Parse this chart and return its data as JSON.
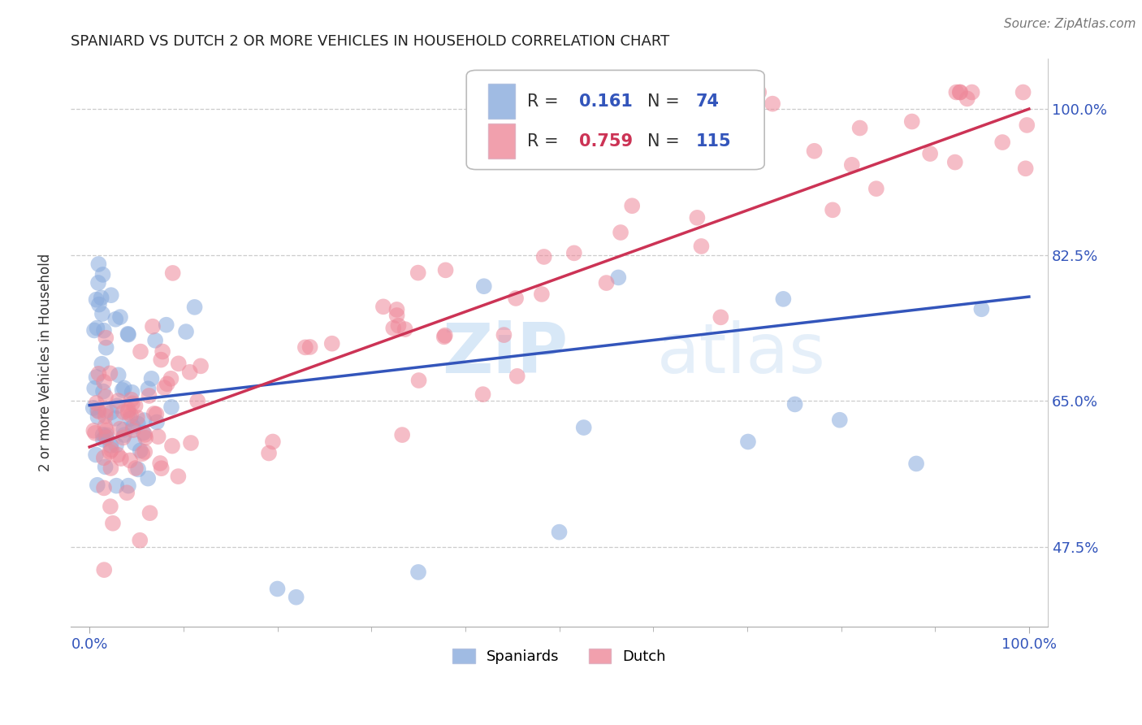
{
  "title": "SPANIARD VS DUTCH 2 OR MORE VEHICLES IN HOUSEHOLD CORRELATION CHART",
  "source": "Source: ZipAtlas.com",
  "ylabel": "2 or more Vehicles in Household",
  "spaniard_color": "#88AADD",
  "dutch_color": "#EE8899",
  "spaniard_line_color": "#3355BB",
  "dutch_line_color": "#CC3355",
  "R_spaniard": 0.161,
  "N_spaniard": 74,
  "R_dutch": 0.759,
  "N_dutch": 115,
  "legend_labels": [
    "Spaniards",
    "Dutch"
  ],
  "ytick_vals": [
    0.475,
    0.65,
    0.825,
    1.0
  ],
  "ytick_labels": [
    "47.5%",
    "65.0%",
    "82.5%",
    "100.0%"
  ],
  "xtick_vals": [
    0.0,
    1.0
  ],
  "xtick_labels": [
    "0.0%",
    "100.0%"
  ],
  "xlim": [
    -0.02,
    1.02
  ],
  "ylim": [
    0.38,
    1.06
  ],
  "title_fontsize": 13,
  "tick_fontsize": 13,
  "legend_fontsize": 15
}
